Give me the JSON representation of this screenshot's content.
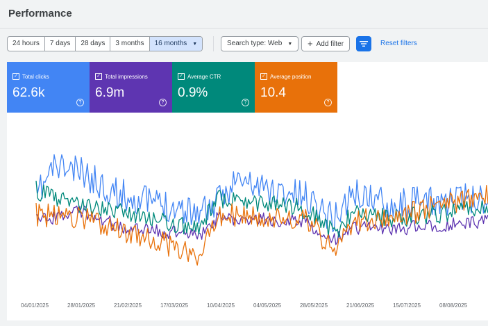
{
  "page": {
    "title": "Performance"
  },
  "toolbar": {
    "ranges": [
      "24 hours",
      "7 days",
      "28 days",
      "3 months",
      "16 months"
    ],
    "active_range": "16 months",
    "search_type": "Search type: Web",
    "add_filter": "Add filter",
    "reset_filters": "Reset filters"
  },
  "metrics": [
    {
      "label": "Total clicks",
      "value": "62.6k",
      "color": "#4285f4"
    },
    {
      "label": "Total impressions",
      "value": "6.9m",
      "color": "#5e35b1"
    },
    {
      "label": "Average CTR",
      "value": "0.9%",
      "color": "#00897b"
    },
    {
      "label": "Average position",
      "value": "10.4",
      "color": "#e8710a"
    }
  ],
  "chart_data": {
    "type": "line",
    "x_ticks": [
      "04/01/2025",
      "28/01/2025",
      "21/02/2025",
      "17/03/2025",
      "10/04/2025",
      "04/05/2025",
      "28/05/2025",
      "21/06/2025",
      "15/07/2025",
      "08/08/2025"
    ],
    "series": [
      {
        "name": "Total clicks",
        "color": "#4285f4"
      },
      {
        "name": "Total impressions",
        "color": "#5e35b1"
      },
      {
        "name": "Average CTR",
        "color": "#00897b"
      },
      {
        "name": "Average position",
        "color": "#e8710a"
      }
    ],
    "grid": false
  }
}
